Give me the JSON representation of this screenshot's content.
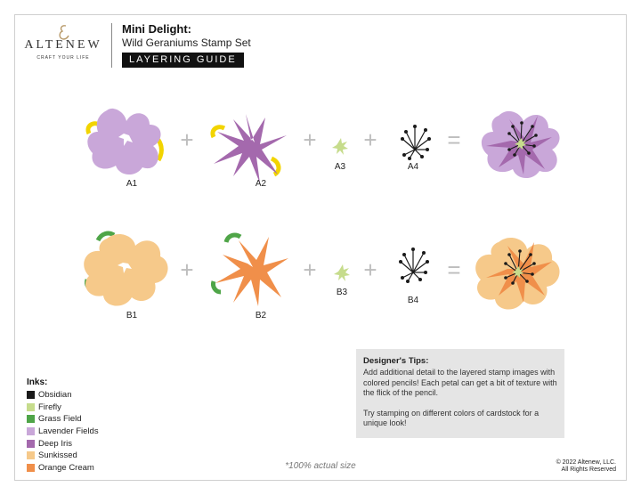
{
  "brand": {
    "name": "ALTENEW",
    "tagline": "CRAFT YOUR LIFE"
  },
  "header": {
    "title": "Mini Delight:",
    "subtitle": "Wild Geraniums Stamp Set",
    "badge": "LAYERING GUIDE"
  },
  "rows": [
    {
      "labels": [
        "A1",
        "A2",
        "A3",
        "A4"
      ]
    },
    {
      "labels": [
        "B1",
        "B2",
        "B3",
        "B4"
      ]
    }
  ],
  "operators": {
    "plus": "+",
    "equals": "="
  },
  "inks": {
    "title": "Inks:",
    "items": [
      {
        "name": "Obsidian",
        "color": "#1a1a1a"
      },
      {
        "name": "Firefly",
        "color": "#c6dc8c"
      },
      {
        "name": "Grass Field",
        "color": "#4fa548"
      },
      {
        "name": "Lavender Fields",
        "color": "#c9a7d9"
      },
      {
        "name": "Deep Iris",
        "color": "#a469ad"
      },
      {
        "name": "Sunkissed",
        "color": "#f6c98a"
      },
      {
        "name": "Orange Cream",
        "color": "#f08f4a"
      }
    ]
  },
  "tips": {
    "title": "Designer's Tips:",
    "paragraphs": [
      "Add additional detail to the layered stamp images with colored pencils! Each petal can get a bit of texture with the flick of the pencil.",
      "Try stamping on different colors of cardstock for a unique look!"
    ]
  },
  "footer": {
    "actual_size": "*100% actual size",
    "copyright_line1": "© 2022 Altenew, LLC.",
    "copyright_line2": "All Rights Reserved"
  }
}
